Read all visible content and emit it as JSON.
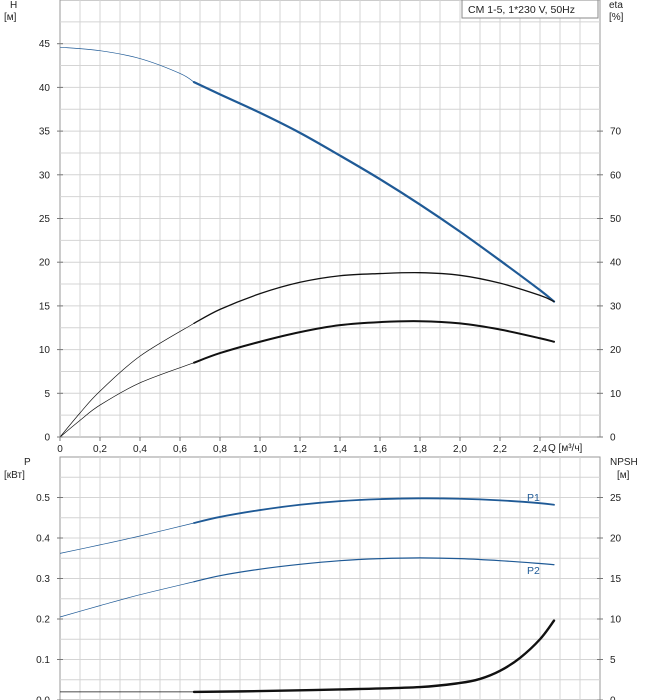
{
  "legend": {
    "text": "CM 1-5, 1*230 V, 50Hz"
  },
  "x_axis": {
    "label": "Q [м³/ч]",
    "ticks": [
      "0",
      "0,2",
      "0,4",
      "0,6",
      "0,8",
      "1,0",
      "1,2",
      "1,4",
      "1,6",
      "1,8",
      "2,0",
      "2,2",
      "2,4"
    ]
  },
  "top_chart": {
    "left_axis": {
      "label_line1": "H",
      "label_line2": "[м]",
      "ticks": [
        "0",
        "5",
        "10",
        "15",
        "20",
        "25",
        "30",
        "35",
        "40",
        "45"
      ]
    },
    "right_axis": {
      "label_line1": "eta",
      "label_line2": "[%]",
      "ticks": [
        "0",
        "10",
        "20",
        "30",
        "40",
        "50",
        "60",
        "70"
      ]
    }
  },
  "bottom_chart": {
    "left_axis": {
      "label_line1": "P",
      "label_line2": "[кВт]",
      "ticks": [
        "0.0",
        "0.1",
        "0.2",
        "0.3",
        "0.4",
        "0.5"
      ]
    },
    "right_axis": {
      "label_line1": "NPSH",
      "label_line2": "[м]",
      "ticks": [
        "0",
        "5",
        "10",
        "15",
        "20",
        "25"
      ]
    },
    "curve_labels": {
      "p1": "P1",
      "p2": "P2"
    }
  },
  "colors": {
    "blue": "#1f5a96",
    "black": "#111111",
    "grid": "#d4d4d4"
  },
  "chart_data": [
    {
      "type": "line",
      "title": "CM 1-5, 1*230 V, 50Hz",
      "xlabel": "Q [м³/ч]",
      "ylabel": "H [м]",
      "y2label": "eta [%]",
      "xlim": [
        0,
        2.7
      ],
      "ylim": [
        0,
        50
      ],
      "y2lim": [
        0,
        100
      ],
      "grid": true,
      "legend_position": "top-right",
      "series": [
        {
          "axis": "left",
          "x": [
            0,
            0.2,
            0.4,
            0.6,
            0.67,
            0.8,
            1.0,
            1.2,
            1.4,
            1.6,
            1.8,
            2.0,
            2.2,
            2.4,
            2.47
          ],
          "y": [
            44.6,
            44.2,
            43.3,
            41.6,
            40.6,
            39.2,
            37.1,
            34.8,
            32.2,
            29.5,
            26.6,
            23.5,
            20.2,
            16.8,
            15.5
          ]
        },
        {
          "axis": "right",
          "x": [
            0,
            0.1,
            0.2,
            0.4,
            0.67,
            0.8,
            1.0,
            1.2,
            1.4,
            1.6,
            1.8,
            2.0,
            2.2,
            2.4,
            2.47
          ],
          "y": [
            0,
            5.5,
            10.5,
            18.5,
            26,
            29.2,
            32.8,
            35.4,
            36.9,
            37.4,
            37.6,
            37.0,
            35.2,
            32.4,
            31
          ]
        },
        {
          "axis": "right",
          "x": [
            0,
            0.1,
            0.2,
            0.4,
            0.67,
            0.8,
            1.0,
            1.2,
            1.4,
            1.6,
            1.8,
            2.0,
            2.2,
            2.4,
            2.47
          ],
          "y": [
            0,
            3.8,
            7.3,
            12.4,
            17,
            19.2,
            21.8,
            24,
            25.6,
            26.3,
            26.5,
            26.0,
            24.6,
            22.6,
            21.8
          ]
        }
      ]
    },
    {
      "type": "line",
      "xlabel": "Q [м³/ч]",
      "ylabel": "P [кВт]",
      "y2label": "NPSH [м]",
      "xlim": [
        0,
        2.7
      ],
      "ylim": [
        0,
        0.6
      ],
      "y2lim": [
        0,
        30
      ],
      "grid": true,
      "series": [
        {
          "name": "P1",
          "axis": "left",
          "x": [
            0,
            0.2,
            0.4,
            0.67,
            0.8,
            1.0,
            1.2,
            1.4,
            1.6,
            1.8,
            2.0,
            2.2,
            2.4,
            2.47
          ],
          "y": [
            0.362,
            0.383,
            0.405,
            0.437,
            0.452,
            0.469,
            0.482,
            0.491,
            0.496,
            0.498,
            0.497,
            0.493,
            0.486,
            0.482
          ]
        },
        {
          "name": "P2",
          "axis": "left",
          "x": [
            0,
            0.2,
            0.4,
            0.67,
            0.8,
            1.0,
            1.2,
            1.4,
            1.6,
            1.8,
            2.0,
            2.2,
            2.4,
            2.47
          ],
          "y": [
            0.205,
            0.233,
            0.26,
            0.292,
            0.307,
            0.323,
            0.335,
            0.344,
            0.349,
            0.351,
            0.349,
            0.344,
            0.337,
            0.334
          ]
        },
        {
          "axis": "right",
          "x": [
            0,
            0.67,
            1.0,
            1.4,
            1.8,
            2.0,
            2.1,
            2.2,
            2.3,
            2.4,
            2.47
          ],
          "y": [
            1.0,
            1.0,
            1.1,
            1.3,
            1.6,
            2.1,
            2.6,
            3.6,
            5.2,
            7.5,
            9.8
          ]
        }
      ]
    }
  ]
}
